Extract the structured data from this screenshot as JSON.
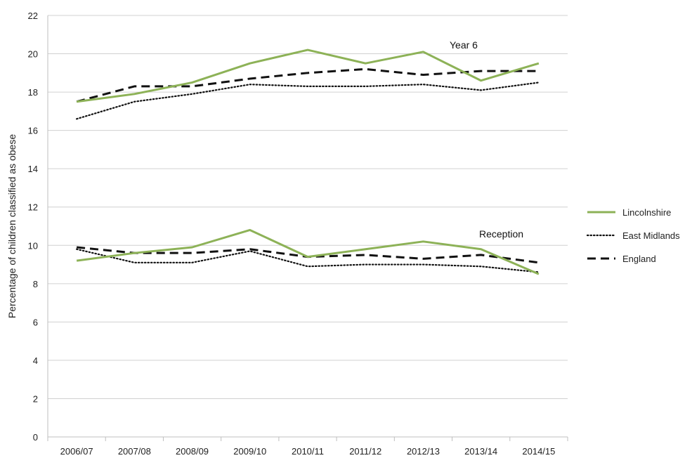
{
  "chart_data": {
    "type": "line",
    "title": "",
    "xlabel": "",
    "ylabel": "Percentage of children classified as obese",
    "ylim": [
      0,
      22
    ],
    "yticks": [
      0,
      2,
      4,
      6,
      8,
      10,
      12,
      14,
      16,
      18,
      20,
      22
    ],
    "grid": true,
    "legend_position": "right",
    "categories": [
      "2006/07",
      "2007/08",
      "2008/09",
      "2009/10",
      "2010/11",
      "2011/12",
      "2012/13",
      "2013/14",
      "2014/15"
    ],
    "groups": [
      {
        "label": "Year 6",
        "series": [
          {
            "name": "Lincolnshire",
            "values": [
              17.5,
              17.9,
              18.5,
              19.5,
              20.2,
              19.5,
              20.1,
              18.6,
              19.5
            ]
          },
          {
            "name": "East Midlands",
            "values": [
              16.6,
              17.5,
              17.9,
              18.4,
              18.3,
              18.3,
              18.4,
              18.1,
              18.5
            ]
          },
          {
            "name": "England",
            "values": [
              17.5,
              18.3,
              18.3,
              18.7,
              19.0,
              19.2,
              18.9,
              19.1,
              19.1
            ]
          }
        ]
      },
      {
        "label": "Reception",
        "series": [
          {
            "name": "Lincolnshire",
            "values": [
              9.2,
              9.6,
              9.9,
              10.8,
              9.4,
              9.8,
              10.2,
              9.8,
              8.5
            ]
          },
          {
            "name": "East Midlands",
            "values": [
              9.8,
              9.1,
              9.1,
              9.7,
              8.9,
              9.0,
              9.0,
              8.9,
              8.6
            ]
          },
          {
            "name": "England",
            "values": [
              9.9,
              9.6,
              9.6,
              9.8,
              9.4,
              9.5,
              9.3,
              9.5,
              9.1
            ]
          }
        ]
      }
    ],
    "legend": [
      {
        "name": "Lincolnshire",
        "color": "#8DB257",
        "style": "solid"
      },
      {
        "name": "East Midlands",
        "color": "#111111",
        "style": "dotted"
      },
      {
        "name": "England",
        "color": "#111111",
        "style": "dashed"
      }
    ]
  }
}
